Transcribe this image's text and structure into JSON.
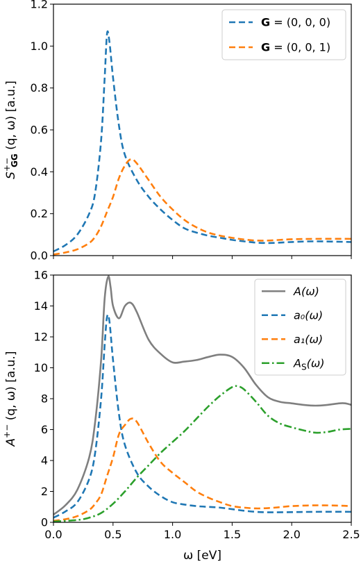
{
  "colors": {
    "blue": "#1f77b4",
    "orange": "#ff7f0e",
    "green": "#2ca02c",
    "gray": "#7f7f7f"
  },
  "chart_data": [
    {
      "type": "line",
      "ylabel": "S^{+-}_{GG}(q, ω) [a.u.]",
      "ylabel_text": {
        "main": "S",
        "sup": "+−",
        "sub": "GG",
        "tail": " (q, ω) [a.u.]"
      },
      "xlim": [
        0,
        2.5
      ],
      "ylim": [
        0,
        1.2
      ],
      "xticks": [
        0.0,
        0.5,
        1.0,
        1.5,
        2.0,
        2.5
      ],
      "yticks": [
        0.0,
        0.2,
        0.4,
        0.6,
        0.8,
        1.0,
        1.2
      ],
      "xticklabels": [],
      "yticklabels": [
        "0.0",
        "0.2",
        "0.4",
        "0.6",
        "0.8",
        "1.0",
        "1.2"
      ],
      "legend": "top-right",
      "grid": false,
      "series": [
        {
          "name": "G = (0, 0, 0)",
          "legend_bold": "G",
          "legend_rest": " = (0, 0, 0)",
          "color": "blue",
          "style": "dashed",
          "x": [
            0,
            0.1,
            0.2,
            0.3,
            0.35,
            0.4,
            0.43,
            0.45,
            0.47,
            0.5,
            0.55,
            0.6,
            0.7,
            0.8,
            0.9,
            1.0,
            1.1,
            1.2,
            1.3,
            1.4,
            1.5,
            1.6,
            1.7,
            1.8,
            1.9,
            2.0,
            2.2,
            2.5
          ],
          "y": [
            0.02,
            0.05,
            0.1,
            0.2,
            0.3,
            0.55,
            0.85,
            1.06,
            1.02,
            0.85,
            0.62,
            0.48,
            0.36,
            0.28,
            0.22,
            0.17,
            0.13,
            0.11,
            0.095,
            0.085,
            0.075,
            0.068,
            0.062,
            0.06,
            0.062,
            0.065,
            0.068,
            0.065
          ]
        },
        {
          "name": "G = (0, 0, 1)",
          "legend_bold": "G",
          "legend_rest": " = (0, 0, 1)",
          "color": "orange",
          "style": "dashed",
          "x": [
            0,
            0.1,
            0.2,
            0.3,
            0.35,
            0.4,
            0.45,
            0.5,
            0.55,
            0.6,
            0.65,
            0.7,
            0.8,
            0.9,
            1.0,
            1.1,
            1.2,
            1.3,
            1.4,
            1.5,
            1.6,
            1.7,
            1.8,
            1.9,
            2.0,
            2.2,
            2.5
          ],
          "y": [
            0.005,
            0.015,
            0.03,
            0.06,
            0.09,
            0.14,
            0.21,
            0.28,
            0.37,
            0.43,
            0.46,
            0.44,
            0.36,
            0.28,
            0.22,
            0.17,
            0.135,
            0.11,
            0.095,
            0.085,
            0.077,
            0.072,
            0.072,
            0.075,
            0.078,
            0.08,
            0.08
          ]
        }
      ]
    },
    {
      "type": "line",
      "xlabel": "ω [eV]",
      "ylabel": "A^{+-}(q, ω) [a.u.]",
      "ylabel_text": {
        "main": "A",
        "sup": "+−",
        "sub": "",
        "tail": " (q, ω) [a.u.]"
      },
      "xlim": [
        0,
        2.5
      ],
      "ylim": [
        0,
        16
      ],
      "xticks": [
        0.0,
        0.5,
        1.0,
        1.5,
        2.0,
        2.5
      ],
      "yticks": [
        0,
        2,
        4,
        6,
        8,
        10,
        12,
        14,
        16
      ],
      "xticklabels": [
        "0.0",
        "0.5",
        "1.0",
        "1.5",
        "2.0",
        "2.5"
      ],
      "yticklabels": [
        "0",
        "2",
        "4",
        "6",
        "8",
        "10",
        "12",
        "14",
        "16"
      ],
      "legend": "top-right",
      "grid": false,
      "series": [
        {
          "name": "A(ω)",
          "color": "gray",
          "style": "solid",
          "x": [
            0,
            0.1,
            0.2,
            0.3,
            0.35,
            0.4,
            0.43,
            0.46,
            0.48,
            0.5,
            0.55,
            0.6,
            0.65,
            0.7,
            0.8,
            0.9,
            1.0,
            1.1,
            1.2,
            1.3,
            1.4,
            1.5,
            1.6,
            1.7,
            1.8,
            1.9,
            2.0,
            2.1,
            2.2,
            2.3,
            2.4,
            2.45,
            2.5
          ],
          "y": [
            0.5,
            1.1,
            2.1,
            4.2,
            6.5,
            10.5,
            14.5,
            15.9,
            15.2,
            14.0,
            13.2,
            14.0,
            14.2,
            13.6,
            11.8,
            10.9,
            10.35,
            10.4,
            10.5,
            10.7,
            10.85,
            10.7,
            10.0,
            8.9,
            8.1,
            7.8,
            7.7,
            7.6,
            7.55,
            7.6,
            7.7,
            7.7,
            7.6
          ]
        },
        {
          "name": "a₀(ω)",
          "color": "blue",
          "style": "dashed",
          "x": [
            0,
            0.1,
            0.2,
            0.3,
            0.35,
            0.4,
            0.43,
            0.45,
            0.47,
            0.5,
            0.55,
            0.6,
            0.7,
            0.8,
            0.9,
            1.0,
            1.1,
            1.2,
            1.3,
            1.4,
            1.5,
            1.6,
            1.7,
            1.8,
            2.0,
            2.2,
            2.5
          ],
          "y": [
            0.3,
            0.7,
            1.3,
            2.8,
            4.5,
            8.0,
            11.5,
            13.3,
            13.0,
            10.5,
            7.0,
            5.0,
            3.2,
            2.3,
            1.7,
            1.3,
            1.15,
            1.05,
            1.0,
            0.95,
            0.85,
            0.75,
            0.68,
            0.65,
            0.66,
            0.68,
            0.68
          ]
        },
        {
          "name": "a₁(ω)",
          "color": "orange",
          "style": "dashed",
          "x": [
            0,
            0.1,
            0.2,
            0.3,
            0.35,
            0.4,
            0.45,
            0.5,
            0.55,
            0.6,
            0.65,
            0.7,
            0.8,
            0.9,
            1.0,
            1.1,
            1.2,
            1.3,
            1.4,
            1.5,
            1.6,
            1.7,
            1.8,
            1.9,
            2.0,
            2.2,
            2.4,
            2.5
          ],
          "y": [
            0.1,
            0.2,
            0.4,
            0.8,
            1.2,
            1.8,
            3.0,
            4.2,
            5.7,
            6.3,
            6.7,
            6.5,
            5.1,
            3.9,
            3.2,
            2.6,
            2.0,
            1.6,
            1.3,
            1.05,
            0.95,
            0.9,
            0.92,
            0.98,
            1.05,
            1.1,
            1.08,
            1.05
          ]
        },
        {
          "name": "A_S(ω)",
          "color": "green",
          "style": "dashdot",
          "x": [
            0,
            0.2,
            0.3,
            0.4,
            0.5,
            0.6,
            0.7,
            0.8,
            0.9,
            1.0,
            1.1,
            1.2,
            1.3,
            1.4,
            1.5,
            1.55,
            1.6,
            1.7,
            1.8,
            1.9,
            2.0,
            2.1,
            2.2,
            2.3,
            2.4,
            2.5
          ],
          "y": [
            0.05,
            0.15,
            0.3,
            0.6,
            1.2,
            2.0,
            2.9,
            3.7,
            4.5,
            5.2,
            5.9,
            6.7,
            7.5,
            8.2,
            8.75,
            8.8,
            8.6,
            7.8,
            6.9,
            6.4,
            6.15,
            5.95,
            5.8,
            5.85,
            6.0,
            6.05
          ]
        }
      ]
    }
  ]
}
